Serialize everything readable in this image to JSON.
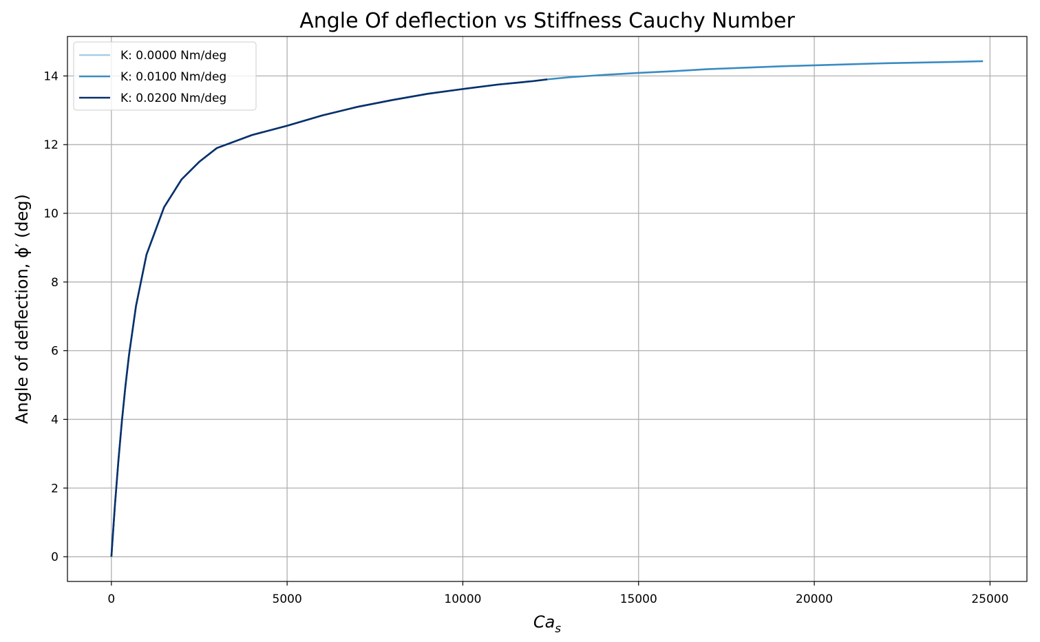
{
  "chart_data": {
    "type": "line",
    "title": "Angle Of deflection vs Stiffness Cauchy Number",
    "xlabel": "Ca",
    "xlabel_subscript": "s",
    "ylabel": "Angle of deflection, ϕ′ (deg)",
    "xlim": [
      -1250,
      26050
    ],
    "ylim": [
      -0.72,
      15.15
    ],
    "xticks": [
      0,
      5000,
      10000,
      15000,
      20000,
      25000
    ],
    "yticks": [
      0,
      2,
      4,
      6,
      8,
      10,
      12,
      14
    ],
    "grid": true,
    "legend_position": "top-left",
    "series": [
      {
        "name": "K: 0.0000 Nm/deg",
        "color": "#a6cee3",
        "x": [],
        "y": []
      },
      {
        "name": "K: 0.0100 Nm/deg",
        "color": "#3a8bc1",
        "x": [
          0,
          100,
          200,
          300,
          400,
          500,
          700,
          1000,
          1500,
          2000,
          2500,
          3000,
          4000,
          5000,
          6000,
          7000,
          8000,
          9000,
          10000,
          11000,
          12000,
          12400,
          13000,
          14000,
          15000,
          16000,
          17000,
          18000,
          19000,
          20000,
          21000,
          22000,
          23000,
          24000,
          24800
        ],
        "y": [
          0.0,
          1.49,
          2.8,
          3.96,
          4.97,
          5.86,
          7.3,
          8.8,
          10.18,
          10.99,
          11.5,
          11.9,
          12.28,
          12.55,
          12.85,
          13.1,
          13.3,
          13.48,
          13.62,
          13.75,
          13.85,
          13.9,
          13.96,
          14.03,
          14.09,
          14.14,
          14.2,
          14.24,
          14.28,
          14.31,
          14.34,
          14.37,
          14.39,
          14.41,
          14.43
        ]
      },
      {
        "name": "K: 0.0200 Nm/deg",
        "color": "#08306b",
        "x": [
          0,
          100,
          200,
          300,
          400,
          500,
          700,
          1000,
          1500,
          2000,
          2500,
          3000,
          4000,
          5000,
          6000,
          7000,
          8000,
          9000,
          10000,
          11000,
          12000,
          12400
        ],
        "y": [
          0.0,
          1.49,
          2.8,
          3.96,
          4.97,
          5.86,
          7.3,
          8.8,
          10.18,
          10.99,
          11.5,
          11.9,
          12.28,
          12.55,
          12.85,
          13.1,
          13.3,
          13.48,
          13.62,
          13.75,
          13.85,
          13.9
        ]
      }
    ]
  }
}
